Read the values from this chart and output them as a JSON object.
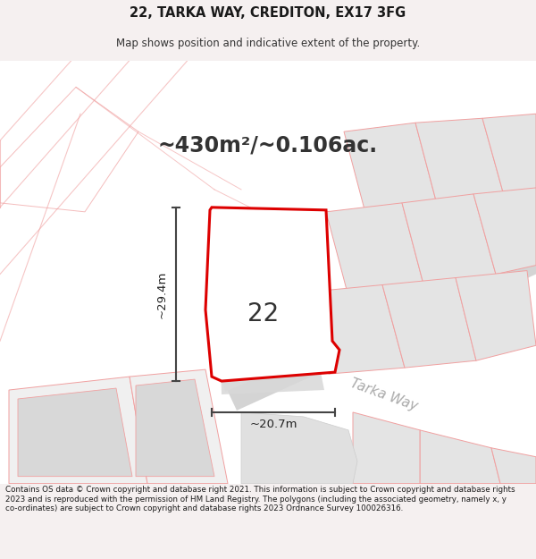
{
  "title_line1": "22, TARKA WAY, CREDITON, EX17 3FG",
  "title_line2": "Map shows position and indicative extent of the property.",
  "area_text": "~430m²/~0.106ac.",
  "label_22": "22",
  "label_tarka_way": "Tarka Way",
  "dim_height": "~29.4m",
  "dim_width": "~20.7m",
  "footer_text": "Contains OS data © Crown copyright and database right 2021. This information is subject to Crown copyright and database rights 2023 and is reproduced with the permission of HM Land Registry. The polygons (including the associated geometry, namely x, y co-ordinates) are subject to Crown copyright and database rights 2023 Ordnance Survey 100026316.",
  "bg_color": "#f5f0f0",
  "map_bg_color": "#ffffff",
  "plot_fill_color": "#ffffff",
  "road_fill_color": "#d4d4d4",
  "plot_outline_color": "#dd0000",
  "neighbor_fill_color": "#e4e4e4",
  "neighbor_outline_color": "#f0a0a0",
  "road_outline_color": "#f0a0a0",
  "dim_line_color": "#444444",
  "road_edge_color": "#cccccc"
}
